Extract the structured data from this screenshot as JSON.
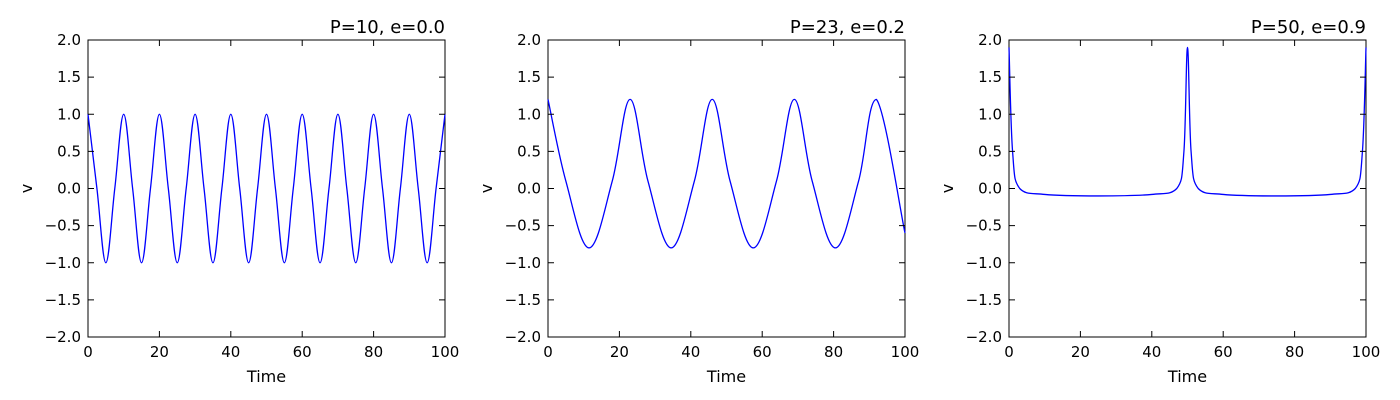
{
  "chart_data": [
    {
      "type": "line",
      "title": "P=10, e=0.0",
      "xlabel": "Time",
      "ylabel": "v",
      "xlim": [
        0,
        100
      ],
      "ylim": [
        -2.0,
        2.0
      ],
      "xticks": [
        0,
        20,
        40,
        60,
        80,
        100
      ],
      "yticks": [
        -2.0,
        -1.5,
        -1.0,
        -0.5,
        0.0,
        0.5,
        1.0,
        1.5,
        2.0
      ],
      "xtick_labels": [
        "0",
        "20",
        "40",
        "60",
        "80",
        "100"
      ],
      "ytick_labels": [
        "−2.0",
        "−1.5",
        "−1.0",
        "−0.5",
        "0.0",
        "0.5",
        "1.0",
        "1.5",
        "2.0"
      ],
      "grid": false,
      "line_color": "#0000ff",
      "series": [
        {
          "period": 10,
          "eccentricity": 0.0,
          "x": [
            0,
            2.5,
            5,
            7.5,
            10,
            12.5,
            15,
            17.5,
            20,
            22.5,
            25,
            27.5,
            30,
            32.5,
            35,
            37.5,
            40,
            42.5,
            45,
            47.5,
            50,
            52.5,
            55,
            57.5,
            60,
            62.5,
            65,
            67.5,
            70,
            72.5,
            75,
            77.5,
            80,
            82.5,
            85,
            87.5,
            90,
            92.5,
            95,
            97.5,
            100
          ],
          "y": [
            1.0,
            0.0,
            -1.0,
            0.0,
            1.0,
            0.0,
            -1.0,
            0.0,
            1.0,
            0.0,
            -1.0,
            0.0,
            1.0,
            0.0,
            -1.0,
            0.0,
            1.0,
            0.0,
            -1.0,
            0.0,
            1.0,
            0.0,
            -1.0,
            0.0,
            1.0,
            0.0,
            -1.0,
            0.0,
            1.0,
            0.0,
            -1.0,
            0.0,
            1.0,
            0.0,
            -1.0,
            0.0,
            1.0,
            0.0,
            -1.0,
            0.0,
            1.0
          ]
        }
      ]
    },
    {
      "type": "line",
      "title": "P=23, e=0.2",
      "xlabel": "Time",
      "ylabel": "v",
      "xlim": [
        0,
        100
      ],
      "ylim": [
        -2.0,
        2.0
      ],
      "xticks": [
        0,
        20,
        40,
        60,
        80,
        100
      ],
      "yticks": [
        -2.0,
        -1.5,
        -1.0,
        -0.5,
        0.0,
        0.5,
        1.0,
        1.5,
        2.0
      ],
      "xtick_labels": [
        "0",
        "20",
        "40",
        "60",
        "80",
        "100"
      ],
      "ytick_labels": [
        "−2.0",
        "−1.5",
        "−1.0",
        "−0.5",
        "0.0",
        "0.5",
        "1.0",
        "1.5",
        "2.0"
      ],
      "grid": false,
      "line_color": "#0000ff",
      "series": [
        {
          "period": 23,
          "eccentricity": 0.2,
          "x": [
            0,
            5,
            11.5,
            18,
            23,
            28,
            34.5,
            41,
            46,
            51,
            57.5,
            64,
            69,
            74,
            80.5,
            87,
            92,
            100
          ],
          "y": [
            1.2,
            0.1,
            -0.8,
            0.1,
            1.2,
            0.1,
            -0.8,
            0.1,
            1.2,
            0.1,
            -0.8,
            0.1,
            1.2,
            0.1,
            -0.8,
            0.1,
            1.2,
            -0.6
          ]
        }
      ]
    },
    {
      "type": "line",
      "title": "P=50, e=0.9",
      "xlabel": "Time",
      "ylabel": "v",
      "xlim": [
        0,
        100
      ],
      "ylim": [
        -2.0,
        2.0
      ],
      "xticks": [
        0,
        20,
        40,
        60,
        80,
        100
      ],
      "yticks": [
        -2.0,
        -1.5,
        -1.0,
        -0.5,
        0.0,
        0.5,
        1.0,
        1.5,
        2.0
      ],
      "xtick_labels": [
        "0",
        "20",
        "40",
        "60",
        "80",
        "100"
      ],
      "ytick_labels": [
        "−2.0",
        "−1.5",
        "−1.0",
        "−0.5",
        "0.0",
        "0.5",
        "1.0",
        "1.5",
        "2.0"
      ],
      "grid": false,
      "line_color": "#0000ff",
      "series": [
        {
          "period": 50,
          "eccentricity": 0.9,
          "x": [
            0,
            1,
            3,
            10,
            25,
            40,
            47,
            49,
            50,
            51,
            53,
            60,
            75,
            90,
            97,
            99,
            100
          ],
          "y": [
            1.9,
            0.5,
            0.0,
            -0.08,
            -0.1,
            -0.08,
            0.0,
            0.5,
            1.9,
            0.5,
            0.0,
            -0.08,
            -0.1,
            -0.08,
            0.0,
            0.5,
            1.9
          ]
        }
      ]
    }
  ]
}
